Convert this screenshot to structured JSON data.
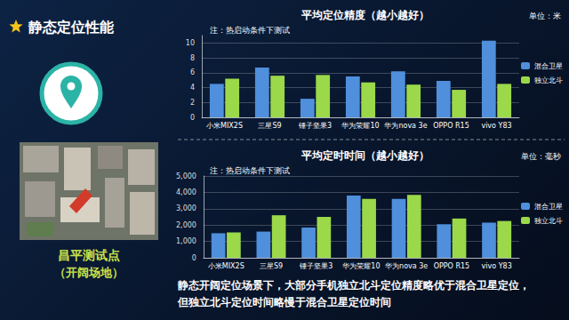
{
  "slide": {
    "title": "静态定位性能",
    "site": "昌平测试点",
    "site_note": "（开阔场地）",
    "conclusion": [
      "静态开阔定位场景下，大部分手机独立北斗定位精度略优于混合卫星定位，",
      "但独立北斗定位时间略慢于混合卫星定位时间"
    ]
  },
  "chart_data": [
    {
      "type": "bar",
      "title": "平均定位精度（越小越好）",
      "annotation": "注：热启动条件下测试",
      "unit": "单位：米",
      "categories": [
        "小米MIX2S",
        "三星S9",
        "锤子坚果3",
        "华为荣耀10",
        "华为nova 3e",
        "OPPO R15",
        "vivo Y83"
      ],
      "series": [
        {
          "name": "混合卫星",
          "color": "#4f8fdc",
          "values": [
            4.5,
            6.7,
            2.5,
            5.5,
            6.2,
            4.9,
            10.3
          ]
        },
        {
          "name": "独立北斗",
          "color": "#9bd84a",
          "values": [
            5.2,
            5.6,
            5.7,
            4.7,
            4.4,
            3.7,
            4.5
          ]
        }
      ],
      "ylim": [
        0,
        11
      ],
      "yticks": [
        0,
        2,
        4,
        6,
        8,
        10
      ],
      "grid": true,
      "legend": "right"
    },
    {
      "type": "bar",
      "title": "平均定时时间（越小越好）",
      "annotation": "注：热启动条件下测试",
      "unit": "单位：毫秒",
      "categories": [
        "小米MIX2S",
        "三星S9",
        "锤子坚果3",
        "华为荣耀10",
        "华为nova 3e",
        "OPPO R15",
        "vivo Y83"
      ],
      "series": [
        {
          "name": "混合卫星",
          "color": "#4f8fdc",
          "values": [
            1500,
            1600,
            1850,
            3800,
            3600,
            2050,
            2150
          ]
        },
        {
          "name": "独立北斗",
          "color": "#9bd84a",
          "values": [
            1550,
            2600,
            2500,
            3600,
            3850,
            2400,
            2250
          ]
        }
      ],
      "ylim": [
        0,
        5000
      ],
      "yticks": [
        0,
        1000,
        2000,
        3000,
        4000,
        5000
      ],
      "grid": true,
      "legend": "right"
    }
  ]
}
